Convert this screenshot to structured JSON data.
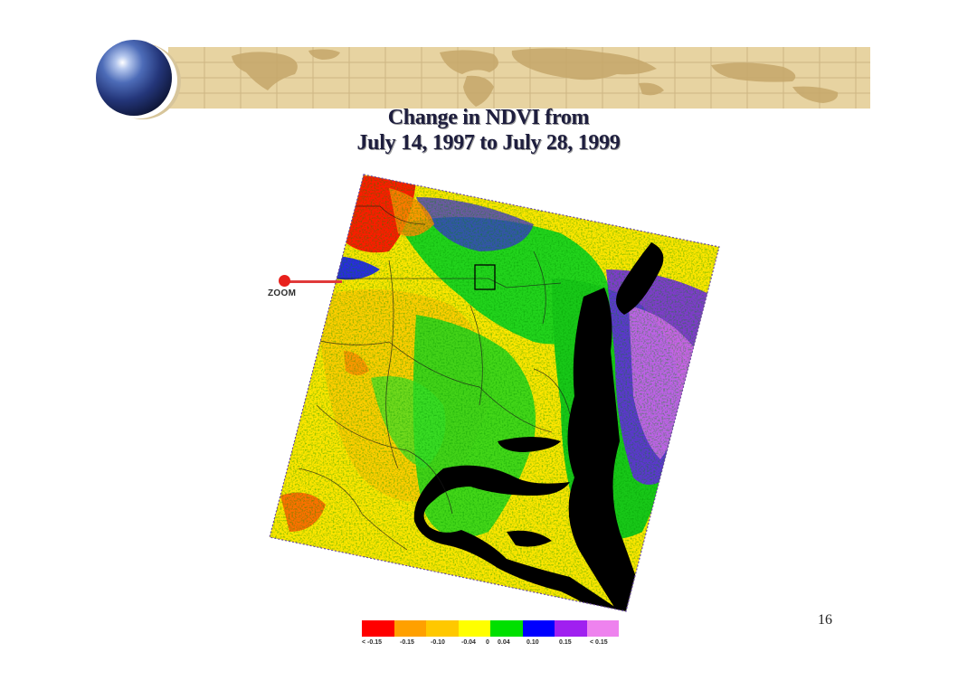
{
  "slide": {
    "title_line1": "Change in NDVI from",
    "title_line2": "July 14, 1997 to July 28, 1999",
    "zoom_label": "ZOOM",
    "page_number": "16"
  },
  "legend": {
    "colors": [
      "#ff0000",
      "#ffa000",
      "#ffc800",
      "#ffff00",
      "#00e000",
      "#0000ff",
      "#a020f0",
      "#ee82ee"
    ],
    "labels": [
      "< -0.15",
      "-0.15",
      "-0.10",
      "-0.04",
      "0",
      "0.04",
      "0.10",
      "0.15",
      "< 0.15"
    ]
  },
  "map": {
    "palette": {
      "strong_decrease": "#ff0000",
      "decrease": "#ffa000",
      "slight_decrease": "#ffc800",
      "no_change": "#ffff00",
      "slight_increase": "#00e000",
      "increase": "#0000ff",
      "strong_increase": "#a020f0",
      "max_increase": "#ee82ee",
      "water": "#000000"
    }
  }
}
